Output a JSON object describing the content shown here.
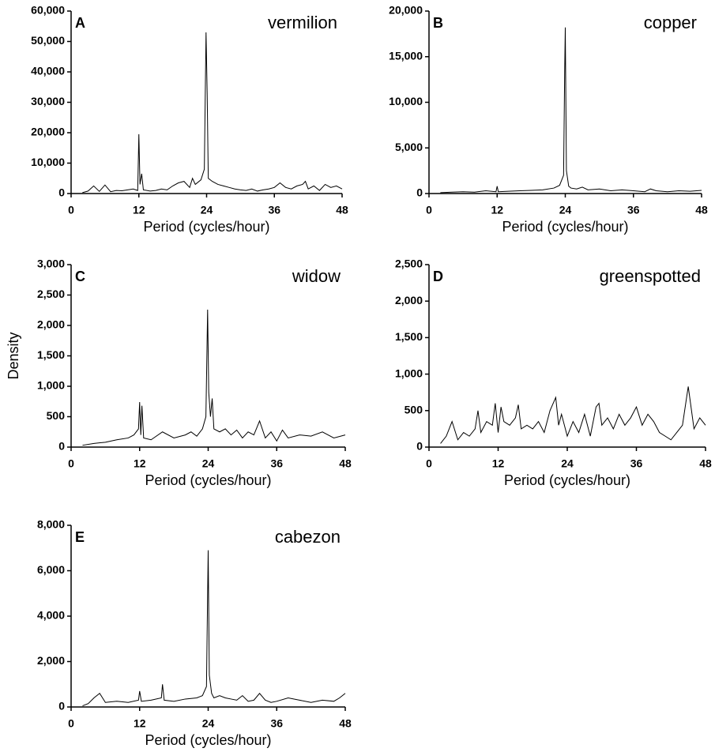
{
  "chart_data": [
    {
      "type": "line",
      "label": "A",
      "title": "vermilion",
      "xlabel": "Period (cycles/hour)",
      "color": "#000000",
      "xlim": [
        0,
        48
      ],
      "xticks": [
        0,
        12,
        24,
        36,
        48
      ],
      "ylim": [
        0,
        60000
      ],
      "yticks": [
        0,
        {
          "value": 10000,
          "label": "10,000"
        },
        {
          "value": 20000,
          "label": "20,000"
        },
        {
          "value": 30000,
          "label": "30,000"
        },
        {
          "value": 40000,
          "label": "40,000"
        },
        {
          "value": 50000,
          "label": "50,000"
        },
        {
          "value": 60000,
          "label": "60,000"
        }
      ],
      "x": [
        2,
        3,
        4,
        5,
        6,
        7,
        8,
        9,
        10,
        11,
        11.8,
        12,
        12.2,
        12.5,
        12.8,
        14,
        15,
        16,
        17,
        18,
        19,
        20,
        21,
        21.5,
        22,
        23,
        23.6,
        23.9,
        24.1,
        24.3,
        25,
        26,
        27,
        28,
        29,
        30,
        31,
        32,
        33,
        34,
        35,
        36,
        37,
        38,
        39,
        40,
        41,
        41.5,
        42,
        43,
        44,
        45,
        46,
        47,
        48
      ],
      "values": [
        300,
        800,
        2500,
        700,
        2800,
        600,
        1000,
        900,
        1200,
        1500,
        1000,
        19500,
        3000,
        6500,
        1200,
        800,
        1000,
        1500,
        1200,
        2500,
        3500,
        4000,
        2000,
        5000,
        3000,
        4500,
        8000,
        53000,
        33000,
        5000,
        4000,
        3000,
        2500,
        2000,
        1500,
        1200,
        1000,
        1500,
        800,
        1200,
        1500,
        2000,
        3500,
        2000,
        1500,
        2500,
        3000,
        4000,
        1500,
        2500,
        1000,
        3000,
        2000,
        2500,
        1500
      ]
    },
    {
      "type": "line",
      "label": "B",
      "title": "copper",
      "xlabel": "Period (cycles/hour)",
      "color": "#000000",
      "xlim": [
        0,
        48
      ],
      "xticks": [
        0,
        12,
        24,
        36,
        48
      ],
      "ylim": [
        0,
        20000
      ],
      "yticks": [
        0,
        {
          "value": 5000,
          "label": "5,000"
        },
        {
          "value": 10000,
          "label": "10,000"
        },
        {
          "value": 15000,
          "label": "15,000"
        },
        {
          "value": 20000,
          "label": "20,000"
        }
      ],
      "x": [
        2,
        4,
        6,
        8,
        10,
        11.8,
        12,
        12.2,
        14,
        16,
        18,
        20,
        22,
        23,
        23.7,
        23.9,
        24,
        24.2,
        24.6,
        25,
        26,
        27,
        28,
        30,
        32,
        34,
        36,
        38,
        39,
        40,
        42,
        44,
        46,
        48
      ],
      "values": [
        100,
        150,
        200,
        150,
        300,
        200,
        800,
        200,
        250,
        300,
        350,
        400,
        600,
        900,
        2000,
        13700,
        18200,
        2500,
        800,
        600,
        500,
        700,
        400,
        500,
        300,
        400,
        300,
        200,
        500,
        300,
        200,
        300,
        250,
        350
      ]
    },
    {
      "type": "line",
      "label": "C",
      "title": "widow",
      "xlabel": "Period (cycles/hour)",
      "ylabel": "Density",
      "color": "#000000",
      "xlim": [
        0,
        48
      ],
      "xticks": [
        0,
        12,
        24,
        36,
        48
      ],
      "ylim": [
        0,
        3000
      ],
      "yticks": [
        0,
        500,
        {
          "value": 1000,
          "label": "1,000"
        },
        {
          "value": 1500,
          "label": "1,500"
        },
        {
          "value": 2000,
          "label": "2,000"
        },
        {
          "value": 2500,
          "label": "2,500"
        },
        {
          "value": 3000,
          "label": "3,000"
        }
      ],
      "x": [
        2,
        4,
        6,
        8,
        10,
        11,
        11.8,
        12,
        12.2,
        12.4,
        12.7,
        14,
        16,
        18,
        20,
        21,
        22,
        23,
        23.6,
        23.9,
        24.1,
        24.4,
        24.7,
        25,
        26,
        27,
        28,
        29,
        30,
        31,
        32,
        33,
        34,
        35,
        36,
        37,
        38,
        40,
        42,
        44,
        46,
        48
      ],
      "values": [
        30,
        60,
        80,
        120,
        150,
        200,
        300,
        740,
        200,
        680,
        150,
        120,
        250,
        150,
        200,
        250,
        180,
        300,
        500,
        2260,
        900,
        500,
        800,
        300,
        250,
        300,
        200,
        280,
        150,
        250,
        200,
        430,
        150,
        250,
        100,
        280,
        150,
        200,
        180,
        250,
        150,
        200
      ]
    },
    {
      "type": "line",
      "label": "D",
      "title": "greenspotted",
      "xlabel": "Period (cycles/hour)",
      "color": "#000000",
      "xlim": [
        0,
        48
      ],
      "xticks": [
        0,
        12,
        24,
        36,
        48
      ],
      "ylim": [
        0,
        2500
      ],
      "yticks": [
        0,
        500,
        {
          "value": 1000,
          "label": "1,000"
        },
        {
          "value": 1500,
          "label": "1,500"
        },
        {
          "value": 2000,
          "label": "2,000"
        },
        {
          "value": 2500,
          "label": "2,500"
        }
      ],
      "x": [
        2,
        3,
        4,
        5,
        6,
        7,
        8,
        8.5,
        9,
        10,
        11,
        11.5,
        12,
        12.5,
        13,
        14,
        15,
        15.5,
        16,
        17,
        18,
        19,
        20,
        21,
        22,
        22.5,
        23,
        24,
        25,
        26,
        27,
        28,
        29,
        29.5,
        30,
        31,
        32,
        33,
        34,
        35,
        36,
        37,
        38,
        39,
        40,
        41,
        42,
        43,
        44,
        45,
        46,
        47,
        48
      ],
      "values": [
        50,
        150,
        350,
        100,
        200,
        150,
        250,
        500,
        200,
        350,
        300,
        600,
        200,
        550,
        350,
        300,
        400,
        580,
        250,
        300,
        250,
        350,
        200,
        500,
        680,
        300,
        450,
        150,
        350,
        200,
        450,
        150,
        550,
        600,
        300,
        400,
        250,
        450,
        300,
        400,
        550,
        300,
        450,
        350,
        200,
        150,
        100,
        200,
        300,
        830,
        250,
        400,
        300
      ]
    },
    {
      "type": "line",
      "label": "E",
      "title": "cabezon",
      "xlabel": "Period (cycles/hour)",
      "color": "#000000",
      "xlim": [
        0,
        48
      ],
      "xticks": [
        0,
        12,
        24,
        36,
        48
      ],
      "ylim": [
        0,
        8000
      ],
      "yticks": [
        0,
        {
          "value": 2000,
          "label": "2,000"
        },
        {
          "value": 4000,
          "label": "4,000"
        },
        {
          "value": 6000,
          "label": "6,000"
        },
        {
          "value": 8000,
          "label": "8,000"
        }
      ],
      "x": [
        2,
        3,
        4,
        5,
        6,
        8,
        10,
        11.8,
        12,
        12.3,
        14,
        15.8,
        16,
        16.3,
        18,
        20,
        22,
        23,
        23.7,
        24,
        24.2,
        24.6,
        25,
        26,
        27,
        28,
        29,
        30,
        31,
        32,
        33,
        34,
        35,
        36,
        38,
        40,
        42,
        44,
        46,
        47,
        48
      ],
      "values": [
        50,
        150,
        400,
        600,
        200,
        250,
        200,
        300,
        700,
        250,
        300,
        400,
        1000,
        300,
        250,
        350,
        400,
        500,
        900,
        6900,
        1400,
        600,
        400,
        500,
        400,
        350,
        300,
        500,
        250,
        300,
        600,
        300,
        200,
        250,
        400,
        300,
        200,
        300,
        250,
        400,
        600
      ]
    }
  ]
}
